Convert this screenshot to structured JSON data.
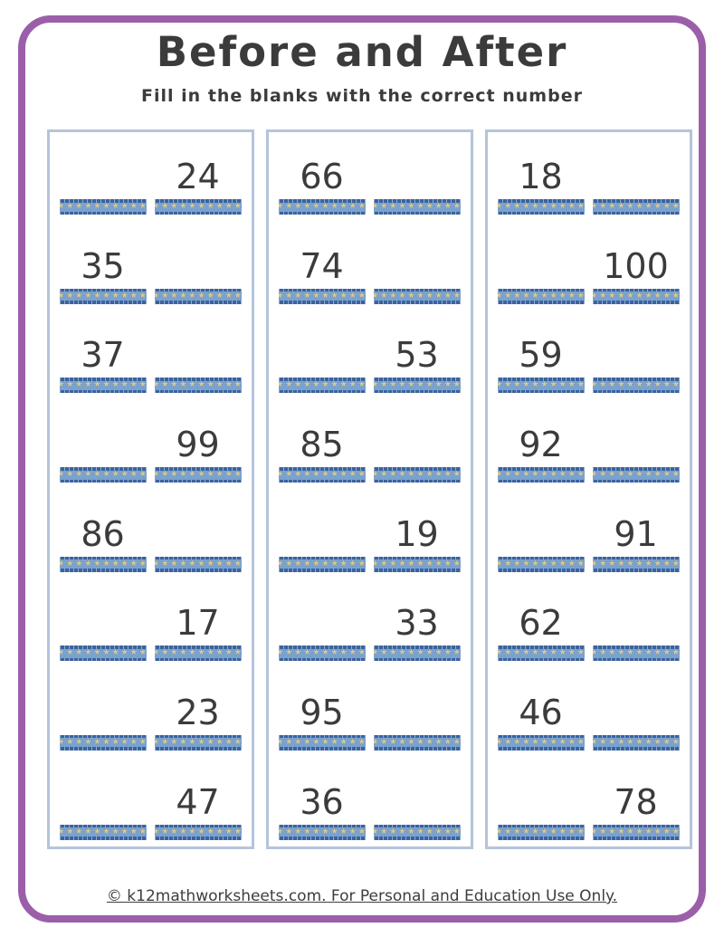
{
  "page": {
    "title": "Before and After",
    "subtitle": "Fill in the blanks with the correct number",
    "footer_text": "© k12mathworksheets.com. For Personal and Education Use Only."
  },
  "theme": {
    "frame_color": "#9B5FA9",
    "ink_color": "#3B3B3B",
    "column_border_color": "#B4C4DA",
    "ribbon_body_color": "#7AA2CE",
    "ribbon_edge_color": "#3A63A0",
    "ribbon_star_color": "#D9C88F"
  },
  "ribbon": {
    "star_icon": "★",
    "stars_per_blank": 10
  },
  "columns": [
    {
      "problems": [
        {
          "number": "24",
          "number_side": "right"
        },
        {
          "number": "35",
          "number_side": "left"
        },
        {
          "number": "37",
          "number_side": "left"
        },
        {
          "number": "99",
          "number_side": "right"
        },
        {
          "number": "86",
          "number_side": "left"
        },
        {
          "number": "17",
          "number_side": "right"
        },
        {
          "number": "23",
          "number_side": "right"
        },
        {
          "number": "47",
          "number_side": "right"
        }
      ]
    },
    {
      "problems": [
        {
          "number": "66",
          "number_side": "left"
        },
        {
          "number": "74",
          "number_side": "left"
        },
        {
          "number": "53",
          "number_side": "right"
        },
        {
          "number": "85",
          "number_side": "left"
        },
        {
          "number": "19",
          "number_side": "right"
        },
        {
          "number": "33",
          "number_side": "right"
        },
        {
          "number": "95",
          "number_side": "left"
        },
        {
          "number": "36",
          "number_side": "left"
        }
      ]
    },
    {
      "problems": [
        {
          "number": "18",
          "number_side": "left"
        },
        {
          "number": "100",
          "number_side": "right"
        },
        {
          "number": "59",
          "number_side": "left"
        },
        {
          "number": "92",
          "number_side": "left"
        },
        {
          "number": "91",
          "number_side": "right"
        },
        {
          "number": "62",
          "number_side": "left"
        },
        {
          "number": "46",
          "number_side": "left"
        },
        {
          "number": "78",
          "number_side": "right"
        }
      ]
    }
  ]
}
